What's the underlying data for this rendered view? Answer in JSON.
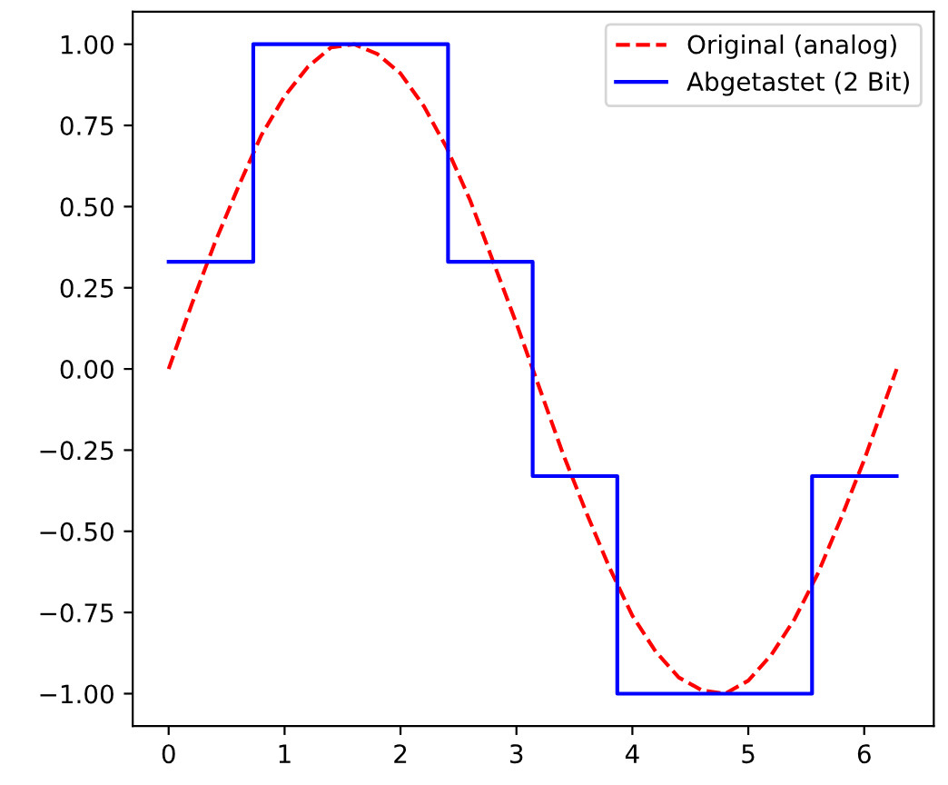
{
  "chart_data": {
    "type": "line",
    "xlim": [
      -0.31,
      6.6
    ],
    "ylim": [
      -1.1,
      1.1
    ],
    "xticks": [
      0,
      1,
      2,
      3,
      4,
      5,
      6
    ],
    "yticks": [
      {
        "value": -1,
        "label": "−1.00"
      },
      {
        "value": -0.75,
        "label": "−0.75"
      },
      {
        "value": -0.5,
        "label": "−0.50"
      },
      {
        "value": -0.25,
        "label": "−0.25"
      },
      {
        "value": 0,
        "label": "0.00"
      },
      {
        "value": 0.25,
        "label": "0.25"
      },
      {
        "value": 0.5,
        "label": "0.50"
      },
      {
        "value": 0.75,
        "label": "0.75"
      },
      {
        "value": 1,
        "label": "1.00"
      }
    ],
    "legend": "top right",
    "series": [
      {
        "name": "Original (analog)",
        "line_style": "dashed",
        "color": "#ff0000",
        "x": [
          0,
          0.2,
          0.4,
          0.6,
          0.8,
          1.0,
          1.2,
          1.4,
          1.6,
          1.8,
          2.0,
          2.2,
          2.4,
          2.6,
          2.8,
          3.0,
          3.2,
          3.4,
          3.6,
          3.8,
          4.0,
          4.2,
          4.4,
          4.6,
          4.8,
          5.0,
          5.2,
          5.4,
          5.6,
          5.8,
          6.0,
          6.2,
          6.28
        ],
        "values": [
          0,
          0.2,
          0.39,
          0.56,
          0.72,
          0.84,
          0.93,
          0.99,
          1.0,
          0.97,
          0.91,
          0.81,
          0.68,
          0.52,
          0.33,
          0.14,
          -0.06,
          -0.26,
          -0.44,
          -0.61,
          -0.76,
          -0.87,
          -0.95,
          -0.99,
          -1.0,
          -0.96,
          -0.88,
          -0.77,
          -0.63,
          -0.46,
          -0.28,
          -0.08,
          0
        ]
      },
      {
        "name": "Abgetastet (2 Bit)",
        "type": "step",
        "line_style": "solid",
        "color": "#0000ff",
        "x": [
          0,
          0.73,
          2.41,
          3.14,
          3.87,
          5.55,
          6.28
        ],
        "values": [
          0.33,
          1,
          0.33,
          -0.33,
          -1,
          -0.33,
          -0.33
        ]
      }
    ]
  }
}
